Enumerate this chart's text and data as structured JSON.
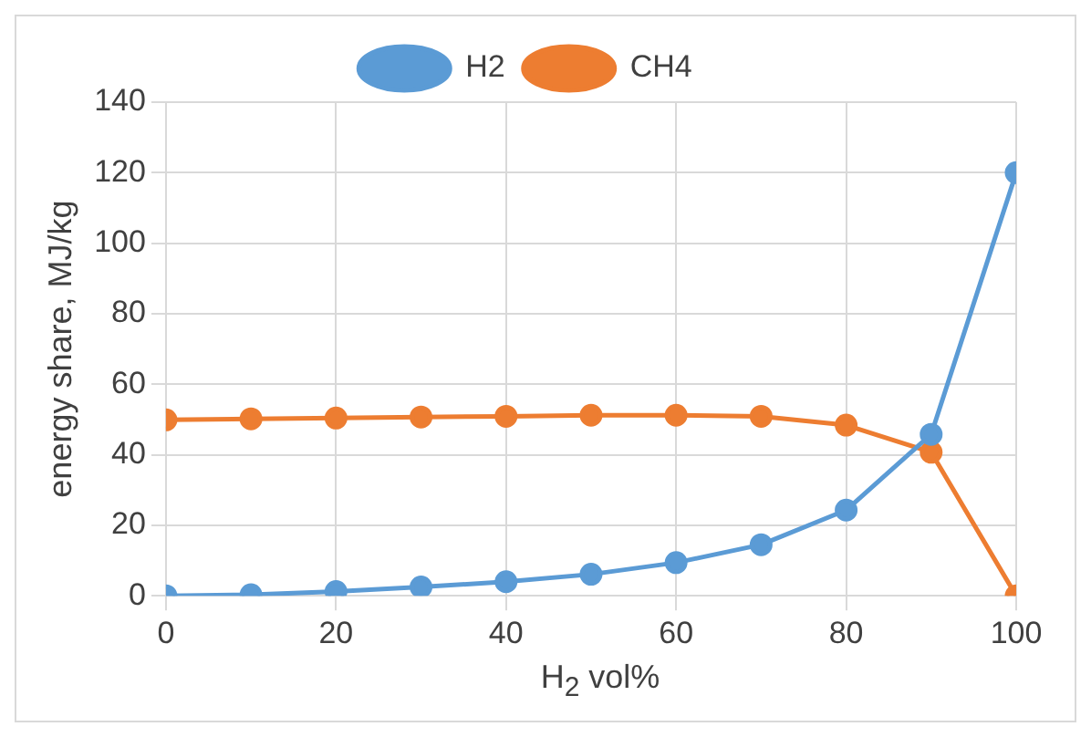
{
  "chart_data": {
    "type": "line",
    "xlabel": "H$_{2}$ vol%",
    "ylabel": "energy share, MJ/kg",
    "x": [
      0,
      10,
      20,
      30,
      40,
      50,
      60,
      70,
      80,
      90,
      100
    ],
    "series": [
      {
        "name": "H2",
        "color": "#5b9bd5",
        "values": [
          0,
          0.3,
          1.2,
          2.5,
          4.0,
          6.1,
          9.4,
          14.5,
          24.3,
          45.8,
          120
        ]
      },
      {
        "name": "CH4",
        "color": "#ed7d31",
        "values": [
          49.9,
          50.2,
          50.4,
          50.7,
          50.9,
          51.2,
          51.2,
          50.9,
          48.4,
          40.7,
          0
        ]
      }
    ],
    "xlim": [
      0,
      100
    ],
    "xticks": [
      0,
      20,
      40,
      60,
      80,
      100
    ],
    "ylim": [
      0,
      140
    ],
    "yticks": [
      0,
      20,
      40,
      60,
      80,
      100,
      120,
      140
    ],
    "grid": true,
    "legend": "top",
    "marker": "circle",
    "line_style": "solid"
  }
}
